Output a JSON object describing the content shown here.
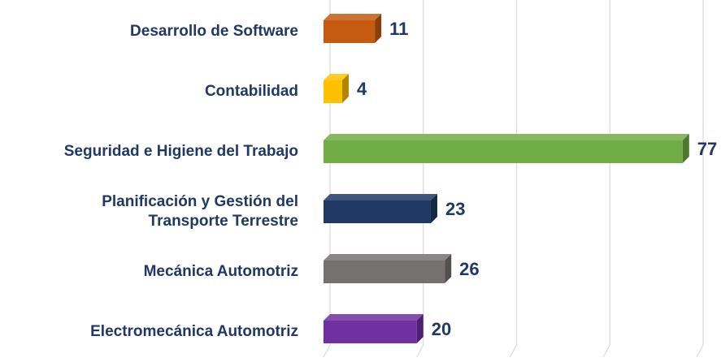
{
  "chart_data": {
    "type": "bar",
    "orientation": "horizontal",
    "categories": [
      "Desarrollo de Software",
      "Contabilidad",
      "Seguridad e Higiene del Trabajo",
      "Planificación y Gestión del Transporte Terrestre",
      "Mecánica Automotriz",
      "Electromecánica Automotriz"
    ],
    "values": [
      11,
      4,
      77,
      23,
      26,
      20
    ],
    "colors": [
      "#c55a11",
      "#ffc000",
      "#70ad47",
      "#1f3864",
      "#767171",
      "#7030a0"
    ],
    "xlim": [
      0,
      80
    ],
    "xticks": [
      0,
      20,
      40,
      60,
      80
    ],
    "grid": true
  }
}
